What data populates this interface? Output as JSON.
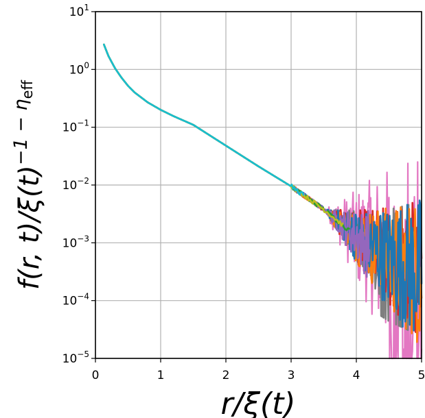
{
  "chart_data": {
    "type": "line",
    "title": "",
    "xlabel": "r/ξ(t)",
    "ylabel": "f(r, t)/ξ(t)^{−1 − η_eff}",
    "ylabel_parts": {
      "main": "f(r, t)/ξ(t)",
      "exp": "−1 − η",
      "sub": "eff"
    },
    "xlim": [
      0,
      5
    ],
    "ylim": [
      1e-05,
      10
    ],
    "yscale": "log",
    "grid": true,
    "legend": "none",
    "x_ticks": [
      "0",
      "1",
      "2",
      "3",
      "4",
      "5"
    ],
    "y_ticks": [
      {
        "base": "10",
        "exp": "1"
      },
      {
        "base": "10",
        "exp": "0"
      },
      {
        "base": "10",
        "exp": "−1"
      },
      {
        "base": "10",
        "exp": "−2"
      },
      {
        "base": "10",
        "exp": "−3"
      },
      {
        "base": "10",
        "exp": "−4"
      },
      {
        "base": "10",
        "exp": "−5"
      }
    ],
    "series": [
      {
        "color": "#e377c2",
        "x_max": 5.0,
        "noisy": true
      },
      {
        "color": "#7f7f7f",
        "x_max": 4.8,
        "noisy": true
      },
      {
        "color": "#d62728",
        "x_max": 5.0,
        "noisy": true
      },
      {
        "color": "#ff7f0e",
        "x_max": 5.0,
        "noisy": true
      },
      {
        "color": "#1f77b4",
        "x_max": 5.0,
        "noisy": true
      },
      {
        "color": "#9467bd",
        "x_max": 4.2,
        "noisy": true
      },
      {
        "color": "#2ca02c",
        "x_max": 3.9,
        "noisy": false
      },
      {
        "color": "#bcbd22",
        "x_max": 3.8,
        "noisy": false
      },
      {
        "color": "#17becf",
        "x_max": 3.2,
        "noisy": false
      }
    ],
    "curve_points": [
      {
        "x": 0.13,
        "y": 2.7
      },
      {
        "x": 0.2,
        "y": 1.7
      },
      {
        "x": 0.3,
        "y": 1.05
      },
      {
        "x": 0.4,
        "y": 0.72
      },
      {
        "x": 0.5,
        "y": 0.52
      },
      {
        "x": 0.6,
        "y": 0.4
      },
      {
        "x": 0.8,
        "y": 0.27
      },
      {
        "x": 1.0,
        "y": 0.2
      },
      {
        "x": 1.2,
        "y": 0.155
      },
      {
        "x": 1.5,
        "y": 0.11
      },
      {
        "x": 2.0,
        "y": 0.048
      },
      {
        "x": 2.5,
        "y": 0.021
      },
      {
        "x": 3.0,
        "y": 0.0095
      },
      {
        "x": 3.5,
        "y": 0.0038
      },
      {
        "x": 4.0,
        "y": 0.0013
      },
      {
        "x": 4.5,
        "y": 0.00055
      },
      {
        "x": 5.0,
        "y": 0.0003
      }
    ]
  }
}
